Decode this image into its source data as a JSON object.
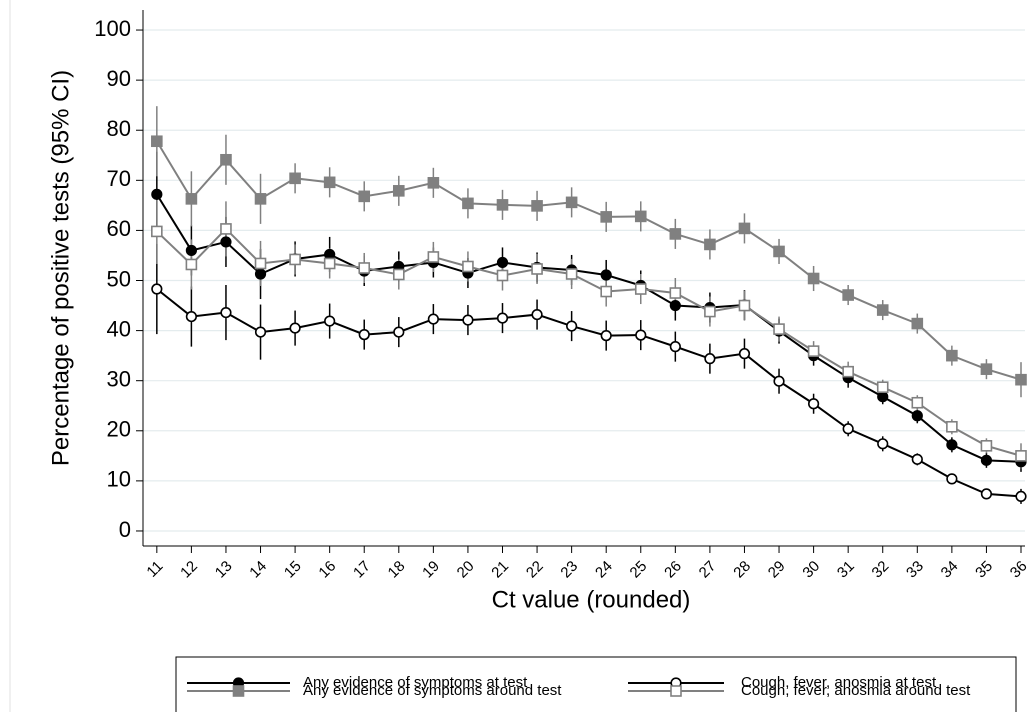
{
  "chart_data": {
    "type": "line",
    "x_label": "Ct value (rounded)",
    "y_label": "Percentage of positive tests (95% CI)",
    "x": [
      11,
      12,
      13,
      14,
      15,
      16,
      17,
      18,
      19,
      20,
      21,
      22,
      23,
      24,
      25,
      26,
      27,
      28,
      29,
      30,
      31,
      32,
      33,
      34,
      35,
      36
    ],
    "xlim": [
      10.6,
      36
    ],
    "ylim": [
      -3,
      104
    ],
    "xticks": [
      11,
      12,
      13,
      14,
      15,
      16,
      17,
      18,
      19,
      20,
      21,
      22,
      23,
      24,
      25,
      26,
      27,
      28,
      29,
      30,
      31,
      32,
      33,
      34,
      35,
      36
    ],
    "yticks": [
      0,
      10,
      20,
      30,
      40,
      50,
      60,
      70,
      80,
      90,
      100
    ],
    "grid": true,
    "series": [
      {
        "name": "Any evidence of symptoms at test",
        "color": "#000000",
        "marker": "circle",
        "marker_fill": "#000000",
        "values": [
          67.2,
          56,
          57.7,
          51.3,
          54.3,
          55.2,
          51.9,
          52.8,
          53.6,
          51.5,
          53.6,
          52.6,
          52.1,
          51.1,
          49,
          45,
          44.6,
          45.1,
          39.9,
          35,
          30.6,
          26.8,
          23,
          17.2,
          14.1,
          13.8
        ],
        "errors": [
          8.5,
          5,
          5,
          5,
          3.5,
          3.5,
          3,
          3,
          3,
          3,
          3,
          3,
          3,
          3,
          3,
          3,
          3,
          3,
          2.5,
          2,
          2,
          1.5,
          1.5,
          1.5,
          1.5,
          2
        ]
      },
      {
        "name": "Any evidence of symptoms around test",
        "color": "#808080",
        "marker": "square",
        "marker_fill": "#808080",
        "values": [
          77.8,
          66.3,
          74.1,
          66.3,
          70.4,
          69.6,
          66.8,
          67.9,
          69.5,
          65.4,
          65.1,
          64.9,
          65.6,
          62.7,
          62.8,
          59.3,
          57.2,
          60.4,
          55.8,
          50.4,
          47.1,
          44.1,
          41.4,
          35,
          32.3,
          30.2
        ],
        "errors": [
          7,
          5.5,
          5,
          5,
          3,
          3,
          3,
          3,
          3,
          3,
          3,
          3,
          3,
          3,
          3,
          3,
          3,
          3,
          2.5,
          2.5,
          2,
          2,
          2,
          2,
          2,
          3.5
        ]
      },
      {
        "name": "Cough, fever, anosmia at test",
        "color": "#000000",
        "marker": "circle",
        "marker_fill": "#ffffff",
        "values": [
          48.3,
          42.8,
          43.6,
          39.7,
          40.5,
          41.9,
          39.2,
          39.7,
          42.3,
          42.1,
          42.5,
          43.2,
          40.9,
          39,
          39.1,
          36.8,
          34.4,
          35.4,
          29.9,
          25.4,
          20.4,
          17.4,
          14.3,
          10.4,
          7.4,
          6.9
        ],
        "errors": [
          9,
          6,
          5.5,
          5.5,
          3.5,
          3.5,
          3,
          3,
          3,
          3,
          3,
          3,
          3,
          3,
          3,
          3,
          3,
          3,
          2.5,
          2,
          1.5,
          1.5,
          1.2,
          1,
          1,
          1.5
        ]
      },
      {
        "name": "Cough, fever, anosmia around test",
        "color": "#808080",
        "marker": "square",
        "marker_fill": "#ffffff",
        "values": [
          59.8,
          53.2,
          60.3,
          53.4,
          54.2,
          53.4,
          52.5,
          51.2,
          54.7,
          52.8,
          51,
          52.3,
          51.3,
          47.8,
          48.3,
          47.5,
          43.8,
          45,
          40.3,
          35.9,
          31.8,
          28.7,
          25.6,
          20.8,
          17,
          15
        ],
        "errors": [
          6.5,
          5,
          5.5,
          4.5,
          3,
          3,
          3,
          3,
          3,
          3,
          3,
          3,
          3,
          3,
          3,
          3,
          3,
          3,
          2.5,
          2,
          2,
          1.5,
          1.5,
          1.5,
          1.5,
          2.5
        ]
      }
    ]
  }
}
